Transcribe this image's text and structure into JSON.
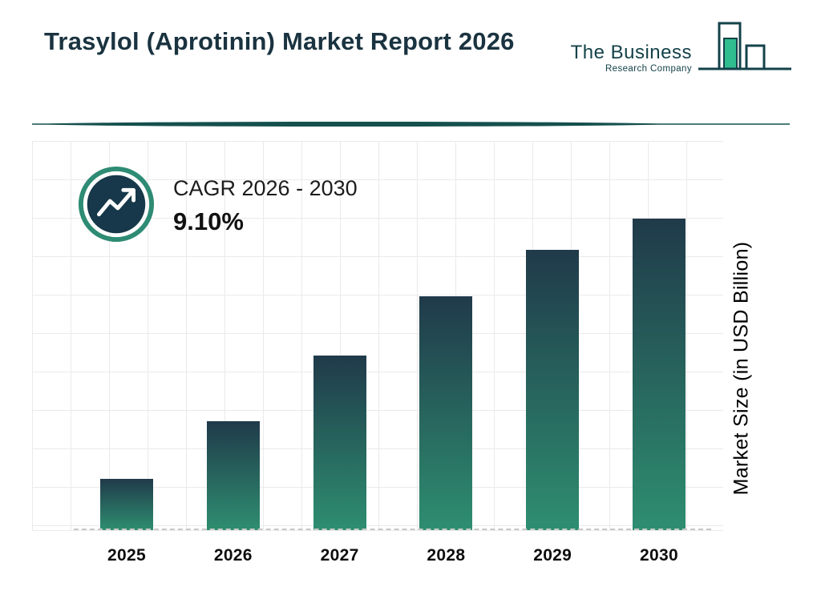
{
  "header": {
    "title": "Trasylol (Aprotinin) Market Report 2026",
    "logo": {
      "line1": "The Business",
      "line2": "Research Company"
    }
  },
  "cagr": {
    "label": "CAGR 2026 - 2030",
    "value": "9.10%"
  },
  "chart_data": {
    "type": "bar",
    "title": "Trasylol (Aprotinin) Market Report 2026",
    "categories": [
      "2025",
      "2026",
      "2027",
      "2028",
      "2029",
      "2030"
    ],
    "values": [
      16.5,
      35,
      56,
      75,
      90,
      100
    ],
    "values_note": "relative bar heights (percent of tallest bar); no numeric value axis is shown in the figure",
    "xlabel": "",
    "ylabel": "Market Size (in USD Billion)",
    "ylim": [
      0,
      125
    ],
    "grid": true,
    "legend": false,
    "baseline_style": "dashed",
    "bar_gradient_top": "#203a4a",
    "bar_gradient_bottom": "#2e8e70"
  },
  "colors": {
    "title": "#1a3340",
    "logo_dark": "#14424a",
    "logo_green": "#2fbd8f",
    "divider": "#14504e",
    "grid": "#eaeaea",
    "icon_ring": "#2e8b74",
    "icon_fill": "#16384a"
  }
}
